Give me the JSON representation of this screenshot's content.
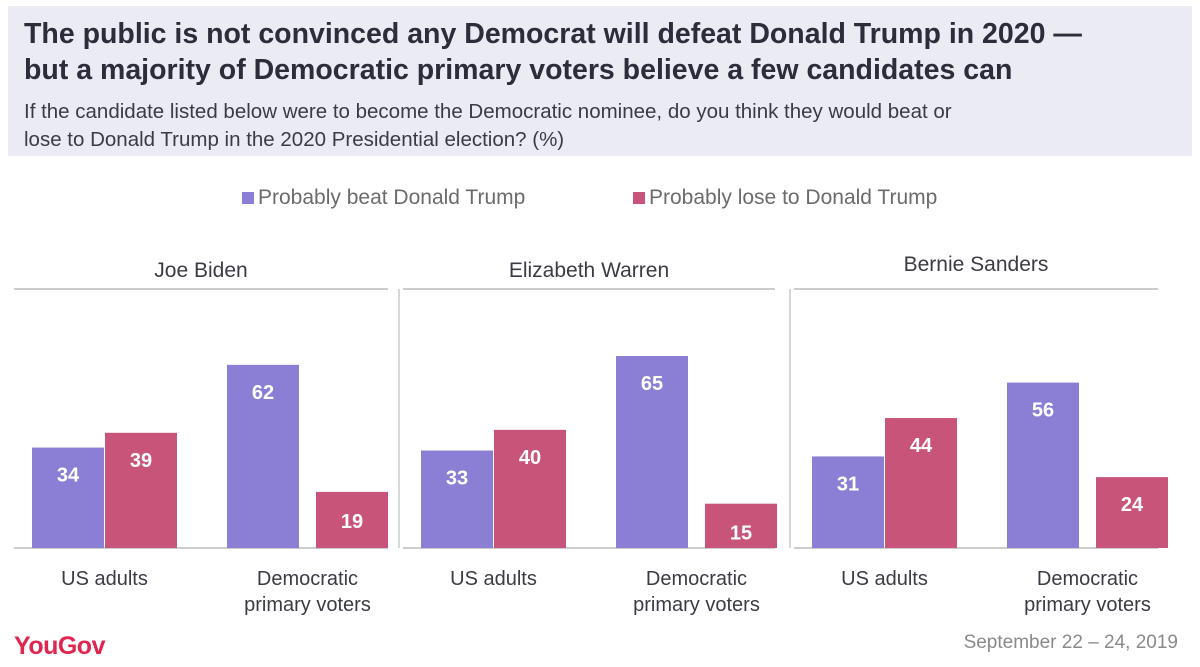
{
  "header": {
    "title_line1": "The public is not convinced any Democrat will defeat Donald Trump in 2020 —",
    "title_line2": "but a majority of Democratic primary voters believe a few candidates can",
    "subtitle_line1": "If the candidate listed below were to become the Democratic nominee, do you think they would beat or",
    "subtitle_line2": "lose to Donald Trump in the 2020 Presidential election? (%)"
  },
  "footer": {
    "logo": "YouGov",
    "date": "September 22 – 24, 2019"
  },
  "colors": {
    "beat": "#8a7fd4",
    "lose": "#c9547a",
    "axis": "#cccccc",
    "label": "#3b3b45"
  },
  "chart_data": {
    "type": "bar",
    "legend": [
      "Probably beat Donald Trump",
      "Probably lose to Donald Trump"
    ],
    "ylim": [
      0,
      70
    ],
    "panels": [
      {
        "title": "Joe Biden",
        "categories": [
          "US adults",
          "Democratic primary voters"
        ],
        "series": [
          {
            "name": "Probably beat Donald Trump",
            "values": [
              34,
              62
            ]
          },
          {
            "name": "Probably lose to Donald Trump",
            "values": [
              39,
              19
            ]
          }
        ]
      },
      {
        "title": "Elizabeth Warren",
        "categories": [
          "US adults",
          "Democratic primary voters"
        ],
        "series": [
          {
            "name": "Probably beat Donald Trump",
            "values": [
              33,
              65
            ]
          },
          {
            "name": "Probably lose to Donald Trump",
            "values": [
              40,
              15
            ]
          }
        ]
      },
      {
        "title": "Bernie Sanders",
        "categories": [
          "US adults",
          "Democratic primary voters"
        ],
        "series": [
          {
            "name": "Probably beat Donald Trump",
            "values": [
              31,
              56
            ]
          },
          {
            "name": "Probably lose to Donald Trump",
            "values": [
              44,
              24
            ]
          }
        ]
      }
    ]
  }
}
